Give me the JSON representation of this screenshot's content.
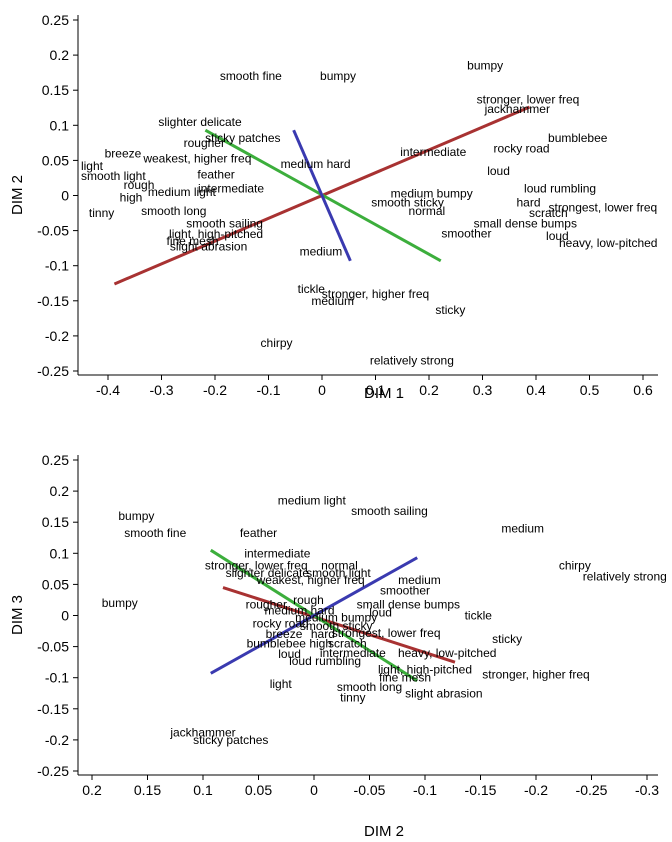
{
  "chart_data": [
    {
      "type": "scatter",
      "xlabel": "DIM 1",
      "ylabel": "DIM 2",
      "xlim": [
        -0.45,
        0.65
      ],
      "ylim": [
        -0.26,
        0.26
      ],
      "xticks": [
        "-0.4",
        "-0.3",
        "-0.2",
        "-0.1",
        "0",
        "0.1",
        "0.2",
        "0.3",
        "0.4",
        "0.5",
        "0.6"
      ],
      "xtick_values": [
        -0.4,
        -0.3,
        -0.2,
        -0.1,
        0,
        0.1,
        0.2,
        0.3,
        0.4,
        0.5,
        0.6
      ],
      "yticks": [
        "0.25",
        "0.2",
        "0.15",
        "0.1",
        "0.05",
        "0",
        "-0.05",
        "-0.1",
        "-0.15",
        "-0.2",
        "-0.25"
      ],
      "ytick_values": [
        0.25,
        0.2,
        0.15,
        0.1,
        0.05,
        0,
        -0.05,
        -0.1,
        -0.15,
        -0.2,
        -0.25
      ],
      "points": [
        {
          "label": "smooth fine",
          "x": -0.133,
          "y": 0.17
        },
        {
          "label": "bumpy",
          "x": 0.03,
          "y": 0.17
        },
        {
          "label": "bumpy",
          "x": 0.305,
          "y": 0.185
        },
        {
          "label": "stronger, lower freq",
          "x": 0.385,
          "y": 0.137
        },
        {
          "label": "jackhammer",
          "x": 0.365,
          "y": 0.123
        },
        {
          "label": "slighter delicate",
          "x": -0.228,
          "y": 0.105
        },
        {
          "label": "rougher",
          "x": -0.22,
          "y": 0.075
        },
        {
          "label": "sticky patches",
          "x": -0.148,
          "y": 0.082
        },
        {
          "label": "bumblebee",
          "x": 0.478,
          "y": 0.082
        },
        {
          "label": "rocky road",
          "x": 0.373,
          "y": 0.067
        },
        {
          "label": "intermediate",
          "x": 0.208,
          "y": 0.062
        },
        {
          "label": "breeze",
          "x": -0.372,
          "y": 0.06
        },
        {
          "label": "weakest, higher freq",
          "x": -0.233,
          "y": 0.053
        },
        {
          "label": "medium hard",
          "x": -0.012,
          "y": 0.045
        },
        {
          "label": "light",
          "x": -0.43,
          "y": 0.042
        },
        {
          "label": "smooth light",
          "x": -0.39,
          "y": 0.028
        },
        {
          "label": "feather",
          "x": -0.198,
          "y": 0.03
        },
        {
          "label": "loud",
          "x": 0.33,
          "y": 0.035
        },
        {
          "label": "rough",
          "x": -0.342,
          "y": 0.015
        },
        {
          "label": "intermediate",
          "x": -0.17,
          "y": 0.01
        },
        {
          "label": "medium light",
          "x": -0.262,
          "y": 0.005
        },
        {
          "label": "loud rumbling",
          "x": 0.445,
          "y": 0.01
        },
        {
          "label": "high",
          "x": -0.357,
          "y": -0.003
        },
        {
          "label": "medium bumpy",
          "x": 0.205,
          "y": 0.003
        },
        {
          "label": "smooth sticky",
          "x": 0.16,
          "y": -0.01
        },
        {
          "label": "hard",
          "x": 0.386,
          "y": -0.01
        },
        {
          "label": "strongest, lower freq",
          "x": 0.525,
          "y": -0.017
        },
        {
          "label": "normal",
          "x": 0.196,
          "y": -0.022
        },
        {
          "label": "scratch",
          "x": 0.423,
          "y": -0.025
        },
        {
          "label": "tinny",
          "x": -0.412,
          "y": -0.025
        },
        {
          "label": "smooth long",
          "x": -0.277,
          "y": -0.022
        },
        {
          "label": "small dense bumps",
          "x": 0.38,
          "y": -0.04
        },
        {
          "label": "smooth sailing",
          "x": -0.182,
          "y": -0.04
        },
        {
          "label": "smoother",
          "x": 0.27,
          "y": -0.054
        },
        {
          "label": "loud",
          "x": 0.44,
          "y": -0.058
        },
        {
          "label": "light, high-pitched",
          "x": -0.198,
          "y": -0.055
        },
        {
          "label": "fine mesh",
          "x": -0.242,
          "y": -0.065
        },
        {
          "label": "heavy, low-pitched",
          "x": 0.535,
          "y": -0.068
        },
        {
          "label": "slight abrasion",
          "x": -0.212,
          "y": -0.073
        },
        {
          "label": "medium",
          "x": -0.002,
          "y": -0.08
        },
        {
          "label": "tickle",
          "x": -0.02,
          "y": -0.133
        },
        {
          "label": "stronger, higher freq",
          "x": 0.1,
          "y": -0.14
        },
        {
          "label": "medium",
          "x": 0.02,
          "y": -0.15
        },
        {
          "label": "sticky",
          "x": 0.24,
          "y": -0.163
        },
        {
          "label": "chirpy",
          "x": -0.085,
          "y": -0.21
        },
        {
          "label": "relatively strong",
          "x": 0.168,
          "y": -0.235
        }
      ],
      "lines": [
        {
          "color": "#a83232",
          "x1": -0.388,
          "y1": -0.126,
          "x2": 0.388,
          "y2": 0.126
        },
        {
          "color": "#3cae3c",
          "x1": -0.218,
          "y1": 0.093,
          "x2": 0.222,
          "y2": -0.093
        },
        {
          "color": "#3a3ab0",
          "x1": -0.053,
          "y1": 0.093,
          "x2": 0.053,
          "y2": -0.093
        }
      ]
    },
    {
      "type": "scatter",
      "xlabel": "DIM 2",
      "ylabel": "DIM 3",
      "xlim": [
        0.22,
        -0.32
      ],
      "ylim": [
        -0.26,
        0.26
      ],
      "xticks": [
        "0.2",
        "0.15",
        "0.1",
        "0.05",
        "0",
        "-0.05",
        "-0.1",
        "-0.15",
        "-0.2",
        "-0.25",
        "-0.3"
      ],
      "xtick_values": [
        0.2,
        0.15,
        0.1,
        0.05,
        0,
        -0.05,
        -0.1,
        -0.15,
        -0.2,
        -0.25,
        -0.3
      ],
      "yticks": [
        "0.25",
        "0.2",
        "0.15",
        "0.1",
        "0.05",
        "0",
        "-0.05",
        "-0.1",
        "-0.15",
        "-0.2",
        "-0.25"
      ],
      "ytick_values": [
        0.25,
        0.2,
        0.15,
        0.1,
        0.05,
        0,
        -0.05,
        -0.1,
        -0.15,
        -0.2,
        -0.25
      ],
      "points": [
        {
          "label": "medium light",
          "x": 0.002,
          "y": 0.185
        },
        {
          "label": "smooth sailing",
          "x": -0.068,
          "y": 0.168
        },
        {
          "label": "bumpy",
          "x": 0.16,
          "y": 0.16
        },
        {
          "label": "smooth fine",
          "x": 0.143,
          "y": 0.133
        },
        {
          "label": "medium",
          "x": -0.188,
          "y": 0.14
        },
        {
          "label": "feather",
          "x": 0.05,
          "y": 0.133
        },
        {
          "label": "intermediate",
          "x": 0.033,
          "y": 0.1
        },
        {
          "label": "stronger, lower freq",
          "x": 0.052,
          "y": 0.08
        },
        {
          "label": "normal",
          "x": -0.023,
          "y": 0.08
        },
        {
          "label": "chirpy",
          "x": -0.235,
          "y": 0.08
        },
        {
          "label": "slighter delicate",
          "x": 0.042,
          "y": 0.068
        },
        {
          "label": "smooth light",
          "x": -0.022,
          "y": 0.068
        },
        {
          "label": "relatively strong",
          "x": -0.28,
          "y": 0.063
        },
        {
          "label": "weakest, higher freq",
          "x": 0.003,
          "y": 0.057
        },
        {
          "label": "medium",
          "x": -0.095,
          "y": 0.057
        },
        {
          "label": "smoother",
          "x": -0.082,
          "y": 0.04
        },
        {
          "label": "bumpy",
          "x": 0.175,
          "y": 0.02
        },
        {
          "label": "rough",
          "x": 0.005,
          "y": 0.025
        },
        {
          "label": "rougher",
          "x": 0.043,
          "y": 0.018
        },
        {
          "label": "small dense bumps",
          "x": -0.085,
          "y": 0.018
        },
        {
          "label": "medium hard",
          "x": 0.013,
          "y": 0.008
        },
        {
          "label": "loud",
          "x": -0.06,
          "y": 0.005
        },
        {
          "label": "tickle",
          "x": -0.148,
          "y": 0.0
        },
        {
          "label": "medium bumpy",
          "x": -0.02,
          "y": -0.003
        },
        {
          "label": "rocky road",
          "x": 0.03,
          "y": -0.013
        },
        {
          "label": "smooth sticky",
          "x": -0.02,
          "y": -0.017
        },
        {
          "label": "breeze",
          "x": 0.027,
          "y": -0.03
        },
        {
          "label": "hard",
          "x": -0.008,
          "y": -0.03
        },
        {
          "label": "strongest, lower freq",
          "x": -0.065,
          "y": -0.028
        },
        {
          "label": "sticky",
          "x": -0.174,
          "y": -0.038
        },
        {
          "label": "bumblebee",
          "x": 0.034,
          "y": -0.045
        },
        {
          "label": "high",
          "x": -0.006,
          "y": -0.045
        },
        {
          "label": "scratch",
          "x": -0.03,
          "y": -0.045
        },
        {
          "label": "intermediate",
          "x": -0.035,
          "y": -0.06
        },
        {
          "label": "heavy, low-pitched",
          "x": -0.12,
          "y": -0.06
        },
        {
          "label": "loud",
          "x": 0.022,
          "y": -0.062
        },
        {
          "label": "loud rumbling",
          "x": -0.01,
          "y": -0.073
        },
        {
          "label": "light, high-pitched",
          "x": -0.1,
          "y": -0.087
        },
        {
          "label": "stronger, higher freq",
          "x": -0.2,
          "y": -0.095
        },
        {
          "label": "fine mesh",
          "x": -0.082,
          "y": -0.1
        },
        {
          "label": "light",
          "x": 0.03,
          "y": -0.11
        },
        {
          "label": "smooth long",
          "x": -0.05,
          "y": -0.115
        },
        {
          "label": "slight abrasion",
          "x": -0.117,
          "y": -0.125
        },
        {
          "label": "tinny",
          "x": -0.035,
          "y": -0.132
        },
        {
          "label": "jackhammer",
          "x": 0.1,
          "y": -0.188
        },
        {
          "label": "sticky patches",
          "x": 0.075,
          "y": -0.2
        }
      ],
      "lines": [
        {
          "color": "#a83232",
          "x1": 0.082,
          "y1": 0.045,
          "x2": -0.127,
          "y2": -0.075
        },
        {
          "color": "#3cae3c",
          "x1": 0.093,
          "y1": 0.105,
          "x2": -0.093,
          "y2": -0.105
        },
        {
          "color": "#3a3ab0",
          "x1": 0.093,
          "y1": -0.093,
          "x2": -0.093,
          "y2": 0.093
        }
      ]
    }
  ]
}
